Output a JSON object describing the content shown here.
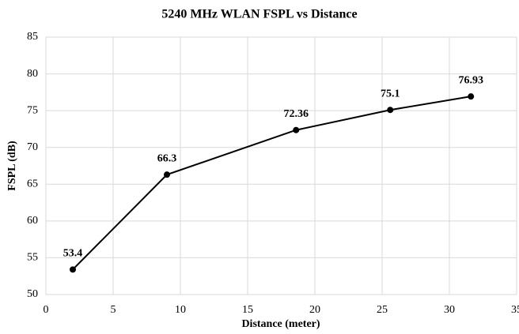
{
  "chart_data": {
    "type": "line",
    "title": "5240 MHz WLAN FSPL vs Distance",
    "x_label": "Distance (meter)",
    "y_label": "FSPL (dB)",
    "x": [
      2,
      9,
      18.6,
      25.6,
      31.6
    ],
    "series": [
      {
        "name": "FSPL",
        "color": "#000000",
        "values": [
          53.4,
          66.3,
          72.36,
          75.1,
          76.93
        ]
      }
    ],
    "xlim": [
      0,
      35
    ],
    "xticks": [
      0,
      5,
      10,
      15,
      20,
      25,
      30,
      35
    ],
    "ylim": [
      50,
      85
    ],
    "yticks": [
      50,
      55,
      60,
      65,
      70,
      75,
      80,
      85
    ],
    "grid": true
  }
}
